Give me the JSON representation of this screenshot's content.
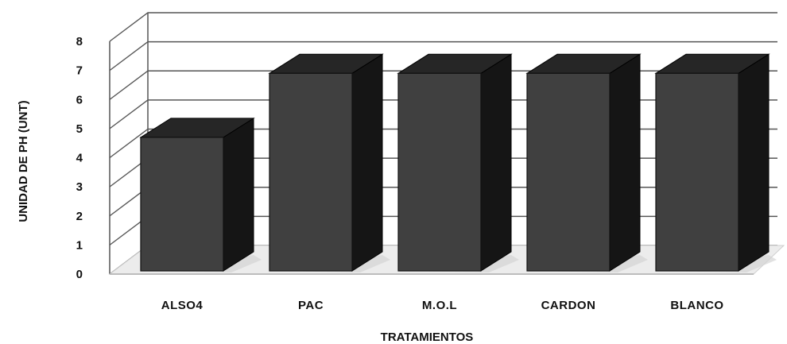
{
  "chart_data": {
    "type": "bar",
    "categories": [
      "ALSO4",
      "PAC",
      "M.O.L",
      "CARDON",
      "BLANCO"
    ],
    "values": [
      4.7,
      6.9,
      6.9,
      6.9,
      6.9
    ],
    "xlabel": "TRATAMIENTOS",
    "ylabel": "UNIDAD DE PH (UNT)",
    "ylim": [
      0,
      8
    ],
    "yticks": [
      0,
      1,
      2,
      3,
      4,
      5,
      6,
      7,
      8
    ],
    "grid": true,
    "style": "3d-column",
    "colors": {
      "front": "#404040",
      "top": "#262626",
      "side": "#151515",
      "grid": "#555555"
    }
  }
}
